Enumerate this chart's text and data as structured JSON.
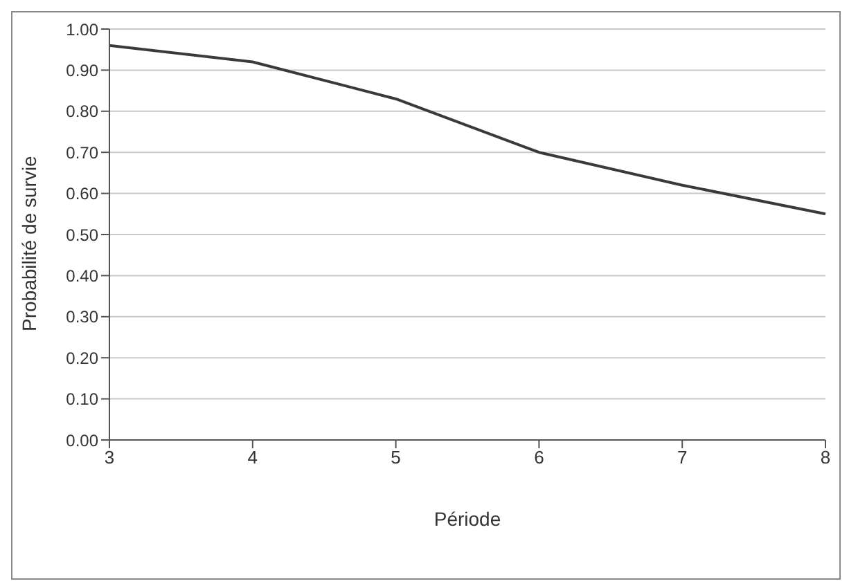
{
  "chart_data": {
    "type": "line",
    "xlabel": "Période",
    "ylabel": "Probabilité de survie",
    "categories": [
      "3",
      "4",
      "5",
      "6",
      "7",
      "8"
    ],
    "series": [
      {
        "color": "#3a3a3a",
        "values": [
          0.96,
          0.92,
          0.83,
          0.7,
          0.62,
          0.55
        ]
      }
    ],
    "ylim": [
      0,
      1
    ],
    "yticks": [
      {
        "value": 0,
        "label": "0.00"
      },
      {
        "value": 0.1,
        "label": "0.10"
      },
      {
        "value": 0.2,
        "label": "0.20"
      },
      {
        "value": 0.3,
        "label": "0.30"
      },
      {
        "value": 0.4,
        "label": "0.40"
      },
      {
        "value": 0.5,
        "label": "0.50"
      },
      {
        "value": 0.6,
        "label": "0.60"
      },
      {
        "value": 0.7,
        "label": "0.70"
      },
      {
        "value": 0.8,
        "label": "0.80"
      },
      {
        "value": 0.9,
        "label": "0.90"
      },
      {
        "value": 1,
        "label": "1.00"
      }
    ],
    "grid": "y",
    "legend": false,
    "marker": "none",
    "line_style": "solid"
  }
}
